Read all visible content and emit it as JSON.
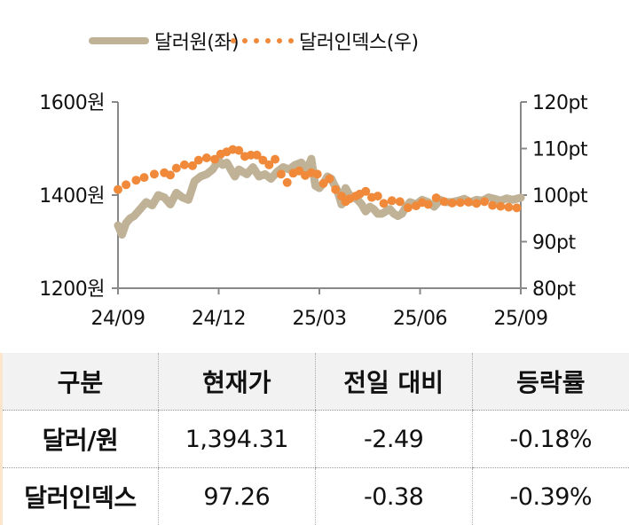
{
  "legend": {
    "series1_label": "달러원(좌)",
    "series2_label": "달러인덱스(우)"
  },
  "colors": {
    "usdkrw": "#bfb297",
    "dxy": "#f08a3a",
    "axis": "#888888",
    "table_header_bg": "#f2f2f2"
  },
  "chart_data": {
    "type": "line",
    "title": "",
    "xlabel": "",
    "x_ticks": [
      "24/09",
      "24/12",
      "25/03",
      "25/06",
      "25/09"
    ],
    "y_left": {
      "label": "달러원",
      "ticks": [
        "1600원",
        "1400원",
        "1200원"
      ],
      "range": [
        1200,
        1600
      ]
    },
    "y_right": {
      "label": "달러인덱스",
      "ticks": [
        "120pt",
        "110pt",
        "100pt",
        "90pt",
        "80pt"
      ],
      "range": [
        80,
        120
      ]
    },
    "grid": false,
    "legend_position": "top",
    "series": [
      {
        "name": "달러원(좌)",
        "axis": "left",
        "style": "thick-line",
        "x": [
          0.0,
          0.01,
          0.02,
          0.03,
          0.04,
          0.055,
          0.07,
          0.085,
          0.1,
          0.115,
          0.13,
          0.145,
          0.16,
          0.175,
          0.19,
          0.205,
          0.22,
          0.235,
          0.25,
          0.26,
          0.27,
          0.28,
          0.29,
          0.3,
          0.31,
          0.32,
          0.335,
          0.35,
          0.365,
          0.38,
          0.395,
          0.41,
          0.425,
          0.44,
          0.455,
          0.47,
          0.48,
          0.49,
          0.5,
          0.51,
          0.52,
          0.53,
          0.535,
          0.545,
          0.555,
          0.565,
          0.575,
          0.585,
          0.595,
          0.605,
          0.615,
          0.625,
          0.635,
          0.645,
          0.655,
          0.665,
          0.675,
          0.685,
          0.695,
          0.705,
          0.715,
          0.725,
          0.74,
          0.755,
          0.77,
          0.785,
          0.8,
          0.815,
          0.83,
          0.845,
          0.86,
          0.875,
          0.89,
          0.905,
          0.92,
          0.935,
          0.95,
          0.965,
          0.98,
          1.0
        ],
        "values": [
          1335,
          1315,
          1340,
          1350,
          1355,
          1370,
          1385,
          1378,
          1400,
          1395,
          1380,
          1405,
          1395,
          1390,
          1430,
          1440,
          1445,
          1455,
          1475,
          1465,
          1470,
          1455,
          1440,
          1455,
          1450,
          1445,
          1460,
          1440,
          1445,
          1435,
          1450,
          1460,
          1455,
          1465,
          1470,
          1455,
          1478,
          1420,
          1415,
          1425,
          1440,
          1435,
          1425,
          1410,
          1380,
          1415,
          1400,
          1395,
          1390,
          1380,
          1365,
          1375,
          1370,
          1360,
          1360,
          1365,
          1370,
          1360,
          1355,
          1360,
          1375,
          1385,
          1380,
          1390,
          1385,
          1375,
          1390,
          1385,
          1385,
          1388,
          1392,
          1385,
          1390,
          1388,
          1395,
          1392,
          1388,
          1393,
          1390,
          1394.31
        ]
      },
      {
        "name": "달러인덱스(우)",
        "axis": "right",
        "style": "dotted",
        "x": [
          0.0,
          0.02,
          0.045,
          0.065,
          0.09,
          0.115,
          0.13,
          0.145,
          0.165,
          0.185,
          0.2,
          0.22,
          0.24,
          0.255,
          0.27,
          0.285,
          0.3,
          0.315,
          0.33,
          0.345,
          0.36,
          0.375,
          0.39,
          0.405,
          0.42,
          0.435,
          0.45,
          0.465,
          0.48,
          0.495,
          0.51,
          0.525,
          0.54,
          0.555,
          0.565,
          0.575,
          0.59,
          0.6,
          0.615,
          0.63,
          0.645,
          0.66,
          0.68,
          0.7,
          0.72,
          0.74,
          0.755,
          0.77,
          0.79,
          0.81,
          0.83,
          0.85,
          0.87,
          0.89,
          0.91,
          0.93,
          0.95,
          0.97,
          0.99
        ],
        "values": [
          101.2,
          102.2,
          103.2,
          103.8,
          104.5,
          104.8,
          104.3,
          105.8,
          106.5,
          106.3,
          107.5,
          108.0,
          107.7,
          108.8,
          109.3,
          109.8,
          109.6,
          108.3,
          108.6,
          108.6,
          107.5,
          106.5,
          107.7,
          104.5,
          102.7,
          104.7,
          105.2,
          104.2,
          104.8,
          104.5,
          102.5,
          103.5,
          101.2,
          99.8,
          98.6,
          99.2,
          99.8,
          100.2,
          100.8,
          99.5,
          99.8,
          98.2,
          98.8,
          98.6,
          97.3,
          97.7,
          98.4,
          98.0,
          99.4,
          98.6,
          98.3,
          98.4,
          98.5,
          98.2,
          98.6,
          97.8,
          97.6,
          97.4,
          97.26
        ]
      }
    ]
  },
  "table": {
    "headers": [
      "구분",
      "현재가",
      "전일 대비",
      "등락률"
    ],
    "rows": [
      {
        "name": "달러/원",
        "price": "1,394.31",
        "change": "-2.49",
        "rate": "-0.18%"
      },
      {
        "name": "달러인덱스",
        "price": "97.26",
        "change": "-0.38",
        "rate": "-0.39%"
      }
    ]
  }
}
